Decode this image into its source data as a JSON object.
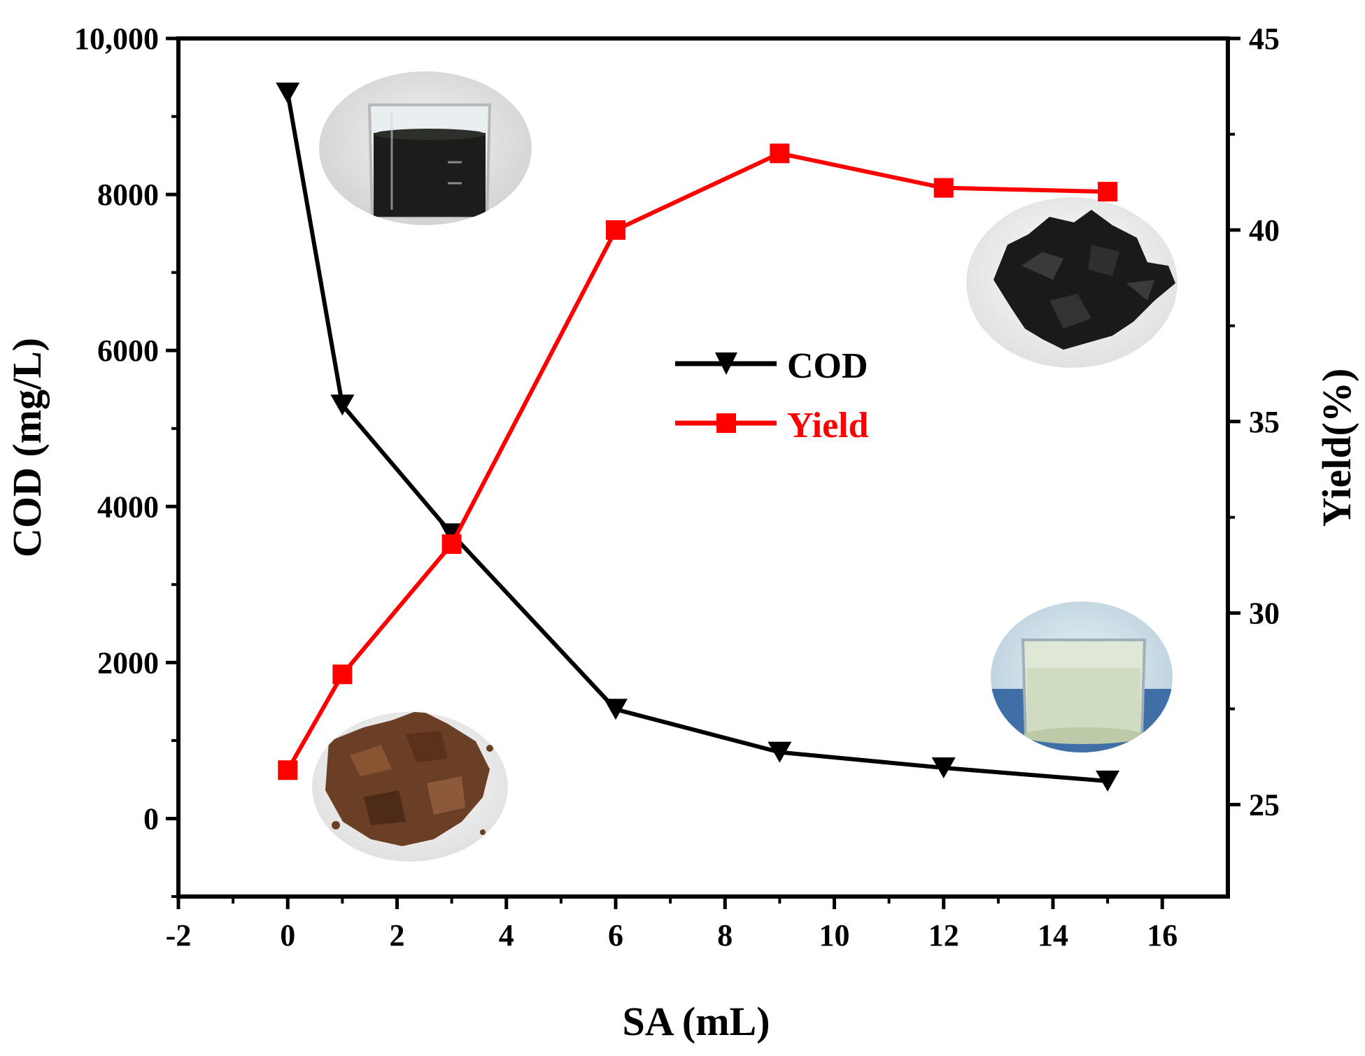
{
  "chart_data": {
    "type": "line",
    "xlabel": "SA (mL)",
    "ylabel_left": "COD (mg/L)",
    "ylabel_right": "Yield(%)",
    "xlim": [
      -2,
      17.2
    ],
    "ylim_left": [
      -1000,
      10000
    ],
    "ylim_right": [
      22.6,
      45
    ],
    "x_ticks": [
      -2,
      0,
      2,
      4,
      6,
      8,
      10,
      12,
      14,
      16
    ],
    "x_tick_labels": [
      "-2",
      "0",
      "2",
      "4",
      "6",
      "8",
      "10",
      "12",
      "14",
      "16"
    ],
    "y_left_ticks": [
      0,
      2000,
      4000,
      6000,
      8000,
      10000
    ],
    "y_left_tick_labels": [
      "0",
      "2000",
      "4000",
      "6000",
      "8000",
      "10,000"
    ],
    "y_right_ticks": [
      25,
      30,
      35,
      40,
      45
    ],
    "y_right_tick_labels": [
      "25",
      "30",
      "35",
      "40",
      "45"
    ],
    "grid": false,
    "legend_position": "center",
    "series": [
      {
        "name": "COD",
        "axis": "left",
        "marker": "triangle-down",
        "color": "#000000",
        "x": [
          0,
          1,
          3,
          6,
          9,
          12,
          15
        ],
        "values": [
          9300,
          5300,
          3650,
          1400,
          850,
          650,
          480
        ]
      },
      {
        "name": "Yield",
        "axis": "right",
        "marker": "square",
        "color": "#ff0000",
        "x": [
          0,
          1,
          3,
          6,
          9,
          12,
          15
        ],
        "values": [
          25.9,
          28.4,
          31.8,
          40.0,
          42.0,
          41.1,
          41.0
        ]
      }
    ]
  },
  "photos": [
    {
      "name": "dark-liquid-beaker-photo"
    },
    {
      "name": "black-solid-product-photo"
    },
    {
      "name": "brown-flakes-photo"
    },
    {
      "name": "clear-liquid-beaker-photo"
    }
  ]
}
